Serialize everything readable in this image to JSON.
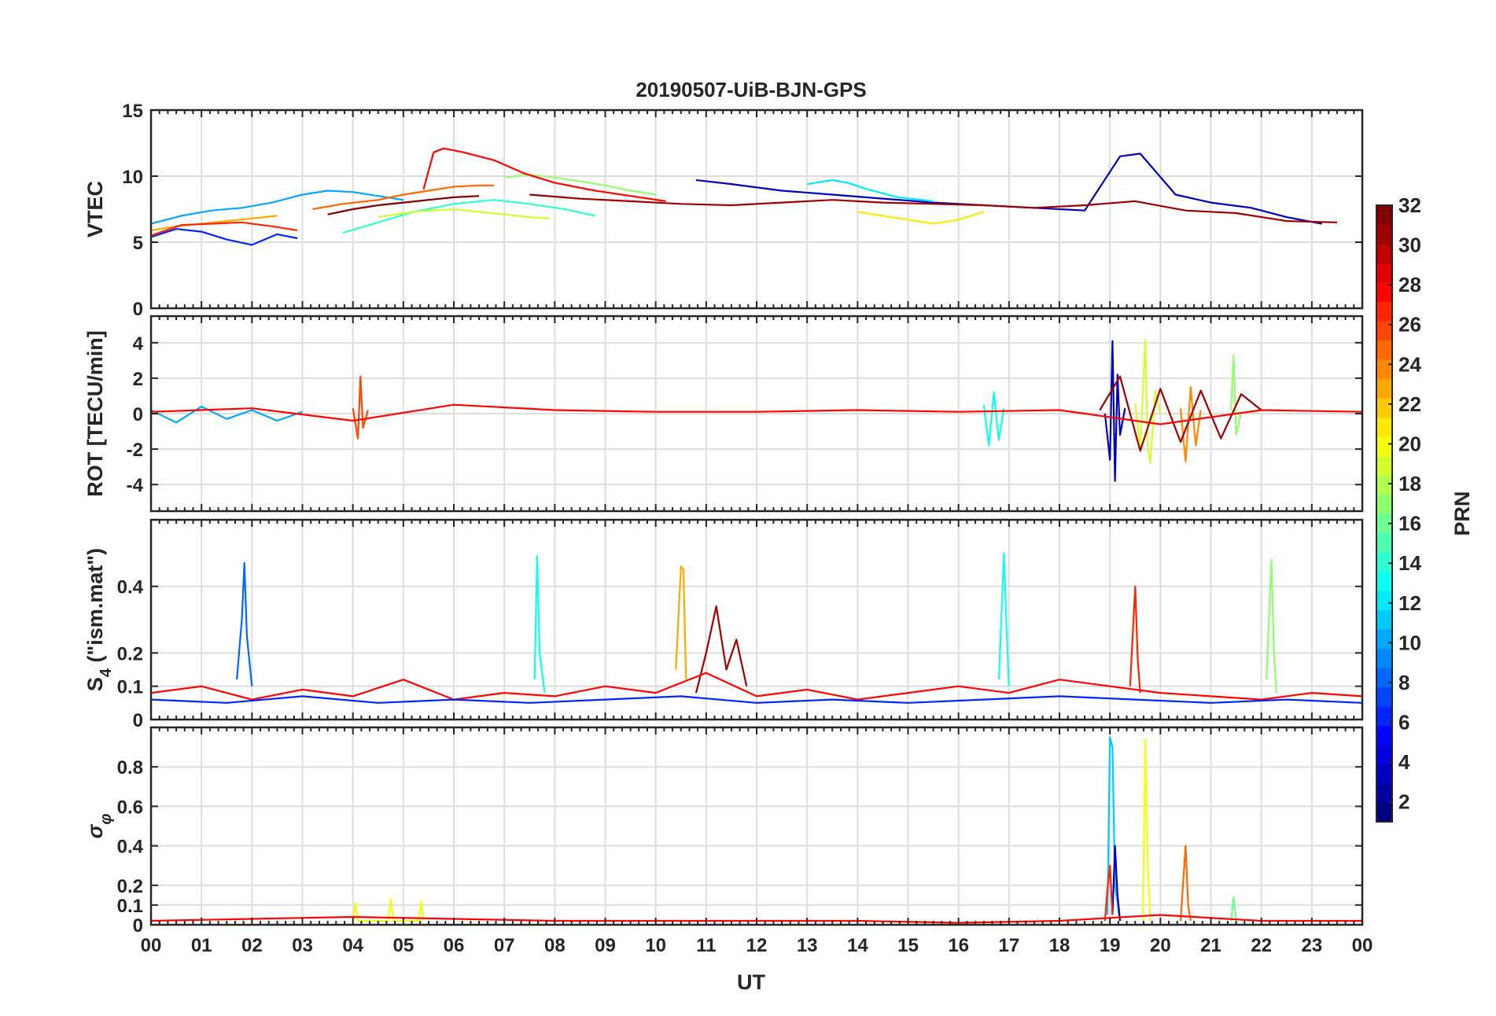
{
  "figure": {
    "title": "20190507-UiB-BJN-GPS",
    "xlabel": "UT",
    "x_tick_labels": [
      "00",
      "01",
      "02",
      "03",
      "04",
      "05",
      "06",
      "07",
      "08",
      "09",
      "10",
      "11",
      "12",
      "13",
      "14",
      "15",
      "16",
      "17",
      "18",
      "19",
      "20",
      "21",
      "22",
      "23",
      "00"
    ]
  },
  "colorbar": {
    "label": "PRN",
    "min": 1,
    "max": 32,
    "tick_values": [
      2,
      4,
      6,
      8,
      10,
      12,
      14,
      16,
      18,
      20,
      22,
      24,
      26,
      28,
      30,
      32
    ],
    "tick_labels": [
      "2",
      "4",
      "6",
      "8",
      "10",
      "12",
      "14",
      "16",
      "18",
      "20",
      "22",
      "24",
      "26",
      "28",
      "30",
      "32"
    ],
    "colormap": "jet",
    "levels": 32
  },
  "chart_data": [
    {
      "type": "line",
      "name": "vtec",
      "ylabel": "VTEC",
      "xlim": [
        0,
        24
      ],
      "ylim": [
        0,
        15
      ],
      "y_ticks": [
        0,
        5,
        10,
        15
      ],
      "y_tick_labels": [
        "0",
        "5",
        "10",
        "15"
      ],
      "grid": true,
      "note_series_coloring": "by PRN",
      "series": [
        {
          "prn": 3,
          "x": [
            10.8,
            11.5,
            12.5,
            13.5,
            14.5,
            15.5,
            16.5,
            17.5,
            18.5,
            19.2,
            19.6,
            20.3,
            21.0,
            21.8,
            22.5,
            23.2
          ],
          "y": [
            9.7,
            9.4,
            8.9,
            8.6,
            8.3,
            8.0,
            7.8,
            7.6,
            7.4,
            11.5,
            11.7,
            8.6,
            8.0,
            7.6,
            6.9,
            6.4
          ]
        },
        {
          "prn": 6,
          "x": [
            0.0,
            0.5,
            1.0,
            1.5,
            2.0,
            2.5,
            2.9
          ],
          "y": [
            5.4,
            6.0,
            5.8,
            5.2,
            4.8,
            5.6,
            5.3
          ]
        },
        {
          "prn": 10,
          "x": [
            0.0,
            0.6,
            1.2,
            1.8,
            2.4,
            3.0,
            3.5,
            4.0,
            4.5,
            5.0
          ],
          "y": [
            6.4,
            7.0,
            7.4,
            7.6,
            8.0,
            8.6,
            8.9,
            8.8,
            8.5,
            8.2
          ]
        },
        {
          "prn": 12,
          "x": [
            13.0,
            13.5,
            13.8,
            14.2,
            14.8,
            15.5
          ],
          "y": [
            9.4,
            9.7,
            9.5,
            9.0,
            8.4,
            8.1
          ]
        },
        {
          "prn": 14,
          "x": [
            3.8,
            4.5,
            5.2,
            6.0,
            6.8,
            7.5,
            8.2,
            8.8
          ],
          "y": [
            5.7,
            6.5,
            7.3,
            7.9,
            8.2,
            7.9,
            7.5,
            7.0
          ]
        },
        {
          "prn": 17,
          "x": [
            7.0,
            7.5,
            8.0,
            8.5,
            9.0,
            9.5,
            10.0
          ],
          "y": [
            9.9,
            10.1,
            9.9,
            9.6,
            9.3,
            8.9,
            8.6
          ]
        },
        {
          "prn": 19,
          "x": [
            4.5,
            5.0,
            5.5,
            6.0,
            6.5,
            7.0,
            7.5,
            7.9
          ],
          "y": [
            6.9,
            7.2,
            7.4,
            7.5,
            7.3,
            7.1,
            6.9,
            6.8
          ]
        },
        {
          "prn": 21,
          "x": [
            14.0,
            14.5,
            15.0,
            15.5,
            16.0,
            16.5
          ],
          "y": [
            7.3,
            7.0,
            6.7,
            6.4,
            6.7,
            7.3
          ]
        },
        {
          "prn": 23,
          "x": [
            0.0,
            0.5,
            1.0,
            1.5,
            2.0,
            2.5
          ],
          "y": [
            5.9,
            6.2,
            6.4,
            6.6,
            6.8,
            7.0
          ]
        },
        {
          "prn": 25,
          "x": [
            3.2,
            3.8,
            4.5,
            5.0,
            5.5,
            6.0,
            6.5,
            6.8
          ],
          "y": [
            7.5,
            7.9,
            8.2,
            8.6,
            8.9,
            9.2,
            9.3,
            9.3
          ]
        },
        {
          "prn": 27,
          "x": [
            0.0,
            0.6,
            1.2,
            1.8,
            2.4,
            2.9
          ],
          "y": [
            5.5,
            6.3,
            6.4,
            6.5,
            6.2,
            5.9
          ]
        },
        {
          "prn": 28,
          "x": [
            5.4,
            5.6,
            5.8,
            6.2,
            6.8,
            7.4,
            8.0,
            8.8,
            9.5,
            10.2
          ],
          "y": [
            9.0,
            11.8,
            12.1,
            11.8,
            11.2,
            10.2,
            9.5,
            8.9,
            8.5,
            8.1
          ]
        },
        {
          "prn": 31,
          "x": [
            7.5,
            8.5,
            9.5,
            10.5,
            11.5,
            12.5,
            13.5,
            14.5,
            15.5,
            16.5,
            17.5,
            18.5,
            19.5,
            20.5,
            21.5,
            22.5,
            23.5
          ],
          "y": [
            8.6,
            8.3,
            8.1,
            7.9,
            7.8,
            8.0,
            8.2,
            8.0,
            7.9,
            7.8,
            7.6,
            7.8,
            8.1,
            7.4,
            7.2,
            6.6,
            6.5
          ]
        },
        {
          "prn": 32,
          "x": [
            3.5,
            4.0,
            4.5,
            5.0,
            5.5,
            6.0,
            6.5
          ],
          "y": [
            7.1,
            7.5,
            7.8,
            8.0,
            8.2,
            8.4,
            8.5
          ]
        }
      ]
    },
    {
      "type": "line",
      "name": "rot",
      "ylabel": "ROT [TECU/min]",
      "xlim": [
        0,
        24
      ],
      "ylim": [
        -5.5,
        5.5
      ],
      "y_ticks": [
        -4,
        -2,
        0,
        2,
        4
      ],
      "y_tick_labels": [
        "-4",
        "-2",
        "0",
        "2",
        "4"
      ],
      "grid": true,
      "series": [
        {
          "prn": 3,
          "x": [
            18.9,
            19.0,
            19.05,
            19.1,
            19.15,
            19.2,
            19.3
          ],
          "y": [
            0.0,
            -2.6,
            4.1,
            -3.8,
            2.2,
            -1.2,
            0.3
          ]
        },
        {
          "prn": 10,
          "x": [
            0.0,
            0.5,
            1.0,
            1.5,
            2.0,
            2.5,
            3.0
          ],
          "y": [
            0.2,
            -0.5,
            0.4,
            -0.3,
            0.2,
            -0.4,
            0.1
          ]
        },
        {
          "prn": 13,
          "x": [
            16.5,
            16.6,
            16.7,
            16.8,
            16.9
          ],
          "y": [
            0.5,
            -1.8,
            1.2,
            -1.5,
            0.3
          ]
        },
        {
          "prn": 19,
          "x": [
            19.5,
            19.6,
            19.7,
            19.75,
            19.8,
            19.9,
            20.0
          ],
          "y": [
            0.6,
            -2.1,
            4.2,
            -1.9,
            -2.8,
            1.3,
            0.0
          ]
        },
        {
          "prn": 17,
          "x": [
            21.4,
            21.45,
            21.5,
            21.6
          ],
          "y": [
            0.2,
            3.3,
            -1.2,
            0.1
          ]
        },
        {
          "prn": 26,
          "x": [
            4.0,
            4.1,
            4.15,
            4.2,
            4.3
          ],
          "y": [
            0.3,
            -1.4,
            2.1,
            -0.8,
            0.2
          ]
        },
        {
          "prn": 24,
          "x": [
            20.4,
            20.5,
            20.6,
            20.7,
            20.8
          ],
          "y": [
            0.3,
            -2.7,
            1.5,
            -1.8,
            0.2
          ]
        },
        {
          "prn": 31,
          "x": [
            18.8,
            19.2,
            19.6,
            20.0,
            20.4,
            20.8,
            21.2,
            21.6,
            22.0
          ],
          "y": [
            0.2,
            2.1,
            -2.1,
            1.4,
            -1.6,
            1.3,
            -1.4,
            1.1,
            0.2
          ]
        },
        {
          "prn": 28,
          "x": [
            0.0,
            2.0,
            4.0,
            6.0,
            8.0,
            10.0,
            12.0,
            14.0,
            16.0,
            18.0,
            20.0,
            22.0,
            24.0
          ],
          "y": [
            0.1,
            0.3,
            -0.4,
            0.5,
            0.2,
            0.1,
            0.1,
            0.2,
            0.1,
            0.2,
            -0.6,
            0.2,
            0.1
          ]
        }
      ]
    },
    {
      "type": "line",
      "name": "s4",
      "ylabel": "S_4 (\"ism.mat\")",
      "xlim": [
        0,
        24
      ],
      "ylim": [
        0,
        0.6
      ],
      "y_ticks": [
        0,
        0.1,
        0.2,
        0.4
      ],
      "y_tick_labels": [
        "0",
        "0.1",
        "0.2",
        "0.4"
      ],
      "grid": true,
      "series": [
        {
          "prn": 8,
          "x": [
            1.7,
            1.8,
            1.85,
            1.9,
            2.0
          ],
          "y": [
            0.12,
            0.3,
            0.47,
            0.25,
            0.1
          ]
        },
        {
          "prn": 13,
          "x": [
            7.6,
            7.65,
            7.7,
            7.8
          ],
          "y": [
            0.12,
            0.49,
            0.2,
            0.08
          ]
        },
        {
          "prn": 23,
          "x": [
            10.4,
            10.5,
            10.55,
            10.6
          ],
          "y": [
            0.15,
            0.46,
            0.45,
            0.12
          ]
        },
        {
          "prn": 13,
          "x": [
            16.8,
            16.9,
            16.95,
            17.0
          ],
          "y": [
            0.12,
            0.5,
            0.28,
            0.1
          ]
        },
        {
          "prn": 17,
          "x": [
            22.1,
            22.2,
            22.25,
            22.3
          ],
          "y": [
            0.12,
            0.48,
            0.2,
            0.08
          ]
        },
        {
          "prn": 27,
          "x": [
            19.4,
            19.5,
            19.55,
            19.6
          ],
          "y": [
            0.1,
            0.4,
            0.18,
            0.08
          ]
        },
        {
          "prn": 31,
          "x": [
            10.8,
            11.0,
            11.2,
            11.4,
            11.6,
            11.8
          ],
          "y": [
            0.08,
            0.2,
            0.34,
            0.15,
            0.24,
            0.1
          ]
        },
        {
          "prn": 28,
          "x": [
            0.0,
            1.0,
            2.0,
            3.0,
            4.0,
            5.0,
            6.0,
            7.0,
            8.0,
            9.0,
            10.0,
            11.0,
            12.0,
            13.0,
            14.0,
            15.0,
            16.0,
            17.0,
            18.0,
            19.0,
            20.0,
            21.0,
            22.0,
            23.0,
            24.0
          ],
          "y": [
            0.08,
            0.1,
            0.06,
            0.09,
            0.07,
            0.12,
            0.06,
            0.08,
            0.07,
            0.1,
            0.08,
            0.14,
            0.07,
            0.09,
            0.06,
            0.08,
            0.1,
            0.08,
            0.12,
            0.1,
            0.08,
            0.07,
            0.06,
            0.08,
            0.07
          ]
        },
        {
          "prn": 6,
          "x": [
            0.0,
            1.5,
            3.0,
            4.5,
            6.0,
            7.5,
            9.0,
            10.5,
            12.0,
            13.5,
            15.0,
            16.5,
            18.0,
            19.5,
            21.0,
            22.5,
            24.0
          ],
          "y": [
            0.06,
            0.05,
            0.07,
            0.05,
            0.06,
            0.05,
            0.06,
            0.07,
            0.05,
            0.06,
            0.05,
            0.06,
            0.07,
            0.06,
            0.05,
            0.06,
            0.05
          ]
        }
      ]
    },
    {
      "type": "line",
      "name": "sigma_phi",
      "ylabel": "σ_φ",
      "xlim": [
        0,
        24
      ],
      "ylim": [
        0,
        1.0
      ],
      "y_ticks": [
        0,
        0.1,
        0.2,
        0.4,
        0.6,
        0.8
      ],
      "y_tick_labels": [
        "0",
        "0.1",
        "0.2",
        "0.4",
        "0.6",
        "0.8"
      ],
      "grid": true,
      "series": [
        {
          "prn": 11,
          "x": [
            18.95,
            19.0,
            19.05,
            19.1,
            19.2
          ],
          "y": [
            0.05,
            0.95,
            0.9,
            0.2,
            0.02
          ]
        },
        {
          "prn": 3,
          "x": [
            19.05,
            19.1,
            19.15,
            19.2
          ],
          "y": [
            0.05,
            0.4,
            0.15,
            0.02
          ]
        },
        {
          "prn": 27,
          "x": [
            18.9,
            18.95,
            19.0,
            19.05
          ],
          "y": [
            0.02,
            0.18,
            0.3,
            0.05
          ]
        },
        {
          "prn": 20,
          "x": [
            19.65,
            19.7,
            19.75,
            19.8
          ],
          "y": [
            0.02,
            0.94,
            0.3,
            0.02
          ]
        },
        {
          "prn": 25,
          "x": [
            20.4,
            20.5,
            20.55,
            20.6
          ],
          "y": [
            0.02,
            0.4,
            0.1,
            0.02
          ]
        },
        {
          "prn": 16,
          "x": [
            21.4,
            21.45,
            21.5
          ],
          "y": [
            0.02,
            0.14,
            0.02
          ]
        },
        {
          "prn": 20,
          "x": [
            4.0,
            4.05,
            4.1,
            4.7,
            4.75,
            4.8,
            5.3,
            5.35,
            5.4
          ],
          "y": [
            0.02,
            0.11,
            0.02,
            0.02,
            0.13,
            0.02,
            0.02,
            0.12,
            0.02
          ]
        },
        {
          "prn": 28,
          "x": [
            0.0,
            2.0,
            4.0,
            6.0,
            8.0,
            10.0,
            12.0,
            14.0,
            16.0,
            18.0,
            20.0,
            22.0,
            24.0
          ],
          "y": [
            0.02,
            0.03,
            0.04,
            0.03,
            0.02,
            0.02,
            0.02,
            0.02,
            0.01,
            0.02,
            0.05,
            0.02,
            0.02
          ]
        }
      ]
    }
  ]
}
